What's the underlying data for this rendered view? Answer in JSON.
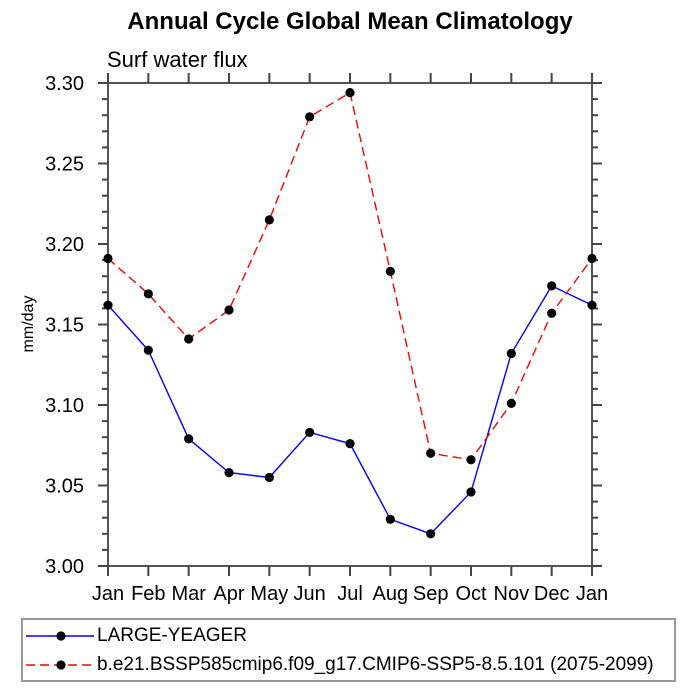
{
  "chart_data": {
    "type": "line",
    "title": "Annual Cycle Global Mean Climatology",
    "subtitle_left": "Surf water flux",
    "ylabel": "mm/day",
    "xlabel": "",
    "categories": [
      "Jan",
      "Feb",
      "Mar",
      "Apr",
      "May",
      "Jun",
      "Jul",
      "Aug",
      "Sep",
      "Oct",
      "Nov",
      "Dec",
      "Jan"
    ],
    "ylim": [
      3.0,
      3.3
    ],
    "ytick_major_interval": 0.05,
    "ytick_minor_interval": 0.01,
    "ytick_labels": [
      "3.00",
      "3.05",
      "3.10",
      "3.15",
      "3.20",
      "3.25",
      "3.30"
    ],
    "grid": false,
    "legend_position": "bottom-left-box",
    "marker": "filled-circle",
    "marker_color": "#000000",
    "series": [
      {
        "name": "LARGE-YEAGER",
        "color": "#0000ff",
        "line_style": "solid",
        "marker_color": "#000000",
        "values": [
          3.162,
          3.134,
          3.079,
          3.058,
          3.055,
          3.083,
          3.076,
          3.029,
          3.02,
          3.046,
          3.132,
          3.174,
          3.162
        ]
      },
      {
        "name": "b.e21.BSSP585cmip6.f09_g17.CMIP6-SSP5-8.5.101 (2075-2099)",
        "color": "#ff0000",
        "line_style": "dashed",
        "marker_color": "#000000",
        "values": [
          3.191,
          3.169,
          3.141,
          3.159,
          3.215,
          3.279,
          3.294,
          3.183,
          3.07,
          3.066,
          3.101,
          3.157,
          3.191
        ]
      }
    ],
    "axis_color": "#555555",
    "tick_color": "#444444"
  }
}
